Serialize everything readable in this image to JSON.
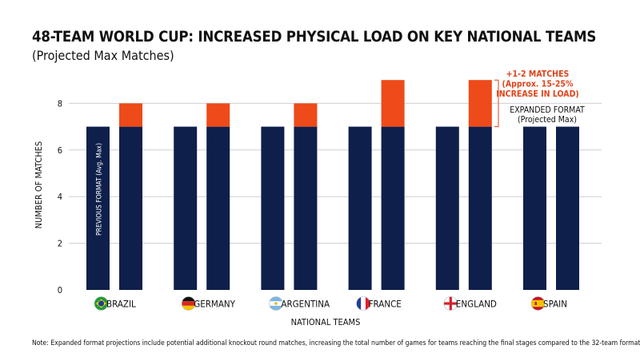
{
  "title": "48-TEAM WORLD CUP: INCREASED PHYSICAL LOAD ON KEY NATIONAL TEAMS",
  "subtitle": "(Projected Max Matches)",
  "note": "Note: Expanded format projections include potential additional knockout round matches, increasing the total number of games for teams reaching the final stages compared to the 32-team format.",
  "colors": {
    "base": "#0f1f4b",
    "increase": "#ee4a1a",
    "increase_text": "#e0431a",
    "grid": "#cfcfcf"
  },
  "chart_data": {
    "type": "bar",
    "categories": [
      "BRAZIL",
      "GERMANY",
      "ARGENTINA",
      "FRANCE",
      "ENGLAND",
      "SPAIN"
    ],
    "flags": [
      "brazil-flag-icon",
      "germany-flag-icon",
      "argentina-flag-icon",
      "france-flag-icon",
      "england-flag-icon",
      "spain-flag-icon"
    ],
    "series": [
      {
        "name": "PREVIOUS FORMAT (Avg. Max)",
        "values": [
          7,
          7,
          7,
          7,
          7,
          7
        ]
      },
      {
        "name": "EXPANDED FORMAT (Projected Max)",
        "base_values": [
          7,
          7,
          7,
          7,
          7,
          7
        ],
        "increase_values": [
          1,
          1,
          1,
          2,
          2,
          0
        ]
      }
    ],
    "xlabel": "NATIONAL TEAMS",
    "ylabel": "NUMBER OF MATCHES",
    "ylim": [
      0,
      9
    ],
    "yticks": [
      0,
      2,
      4,
      6,
      8
    ],
    "grid": true,
    "annotations": {
      "increase_label": [
        "+1-2 MATCHES",
        "(Approx. 15-25%",
        "INCREASE IN LOAD)"
      ],
      "expanded_label": [
        "EXPANDED FORMAT",
        "(Projected Max)"
      ],
      "previous_label": "PREVIOUS FORMAT (Avg. Max)"
    }
  }
}
